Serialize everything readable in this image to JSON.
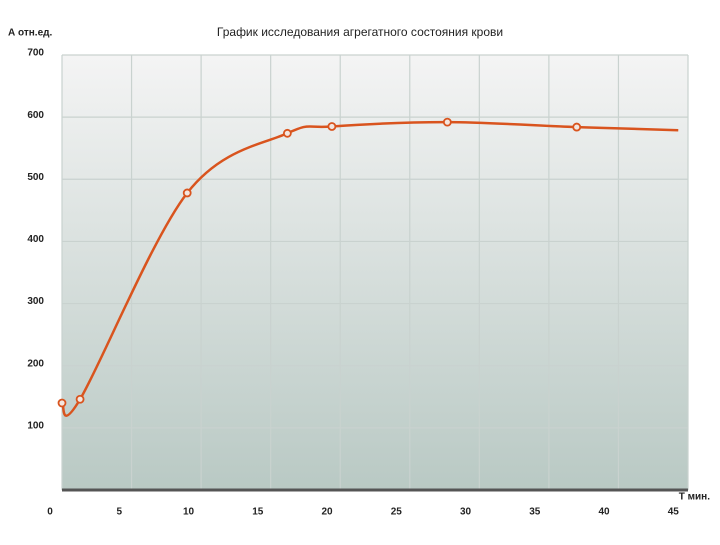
{
  "chart_data": {
    "type": "line",
    "title": "График исследования  агрегатного состояния крови",
    "y_label": "А отн.ед.",
    "x_label": "Т мин.",
    "xlim": [
      0,
      45
    ],
    "xticks": [
      0,
      5,
      10,
      15,
      20,
      25,
      30,
      35,
      40,
      45
    ],
    "ylim": [
      0,
      700
    ],
    "yticks": [
      100,
      200,
      300,
      400,
      500,
      600,
      700
    ],
    "grid": true,
    "series": [
      {
        "color": "#d9541e",
        "x": [
          0,
          1.3,
          9,
          16.2,
          19.4,
          27.7,
          37,
          44.3
        ],
        "values": [
          140,
          146,
          478,
          574,
          585,
          592,
          584,
          579
        ]
      }
    ]
  }
}
